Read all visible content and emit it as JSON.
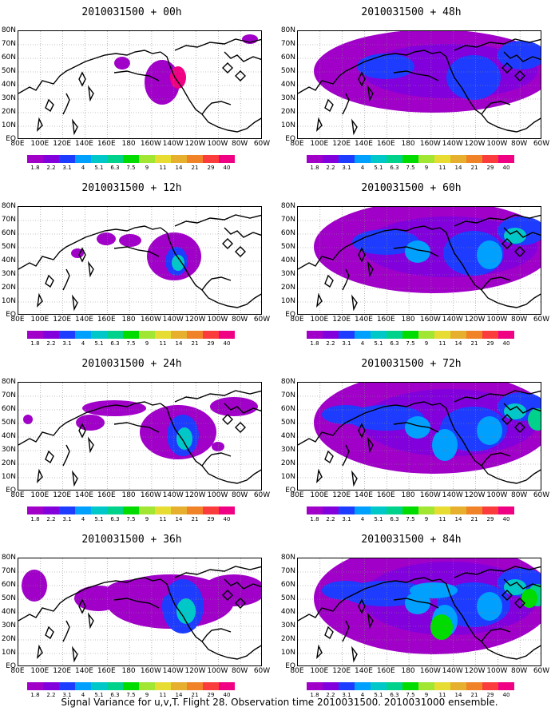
{
  "panels": [
    {
      "title": "2010031500 + 00h",
      "level": 0
    },
    {
      "title": "2010031500 + 48h",
      "level": 4
    },
    {
      "title": "2010031500 + 12h",
      "level": 1
    },
    {
      "title": "2010031500 + 60h",
      "level": 5
    },
    {
      "title": "2010031500 + 24h",
      "level": 2
    },
    {
      "title": "2010031500 + 72h",
      "level": 6
    },
    {
      "title": "2010031500 + 36h",
      "level": 3
    },
    {
      "title": "2010031500 + 84h",
      "level": 7
    }
  ],
  "y_ticks": [
    "80N",
    "70N",
    "60N",
    "50N",
    "40N",
    "30N",
    "20N",
    "10N",
    "EQ"
  ],
  "x_ticks": [
    "80E",
    "100E",
    "120E",
    "140E",
    "160E",
    "180",
    "160W",
    "140W",
    "120W",
    "100W",
    "80W",
    "60W"
  ],
  "colorbar": {
    "colors": [
      "#a000c8",
      "#8200dc",
      "#1e3cff",
      "#00a0ff",
      "#00c8c8",
      "#00d28c",
      "#00dc00",
      "#a0e632",
      "#e6dc32",
      "#e6af2d",
      "#f08228",
      "#fa3c3c",
      "#f00082"
    ],
    "labels": [
      "1.8",
      "2.2",
      "3.1",
      "4",
      "5.1",
      "6.3",
      "7.5",
      "9",
      "11",
      "14",
      "21",
      "29",
      "40"
    ]
  },
  "caption": "Signal Variance for u,v,T. Flight 28. Observation time 2010031500. 2010031000 ensemble."
}
